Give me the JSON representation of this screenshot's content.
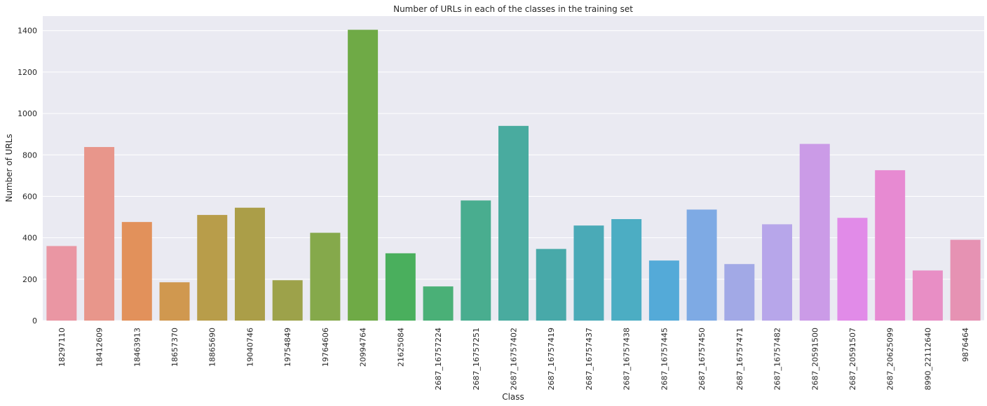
{
  "chart_data": {
    "type": "bar",
    "title": "Number of URLs in each of the classes in the training set",
    "xlabel": "Class",
    "ylabel": "Number of URLs",
    "ylim": [
      0,
      1470
    ],
    "yticks": [
      "0",
      "200",
      "400",
      "600",
      "800",
      "1000",
      "1200",
      "1400"
    ],
    "grid": true,
    "legend": "none",
    "categories": [
      "18297110",
      "18412609",
      "18463913",
      "18657370",
      "18865690",
      "19040746",
      "19754849",
      "19764606",
      "20994764",
      "21625084",
      "2687_16757224",
      "2687_16757251",
      "2687_16757402",
      "2687_16757419",
      "2687_16757437",
      "2687_16757438",
      "2687_16757445",
      "2687_16757450",
      "2687_16757471",
      "2687_16757482",
      "2687_20591500",
      "2687_20591507",
      "2687_20625099",
      "8990_22112640",
      "9876464"
    ],
    "values": [
      360,
      838,
      476,
      185,
      510,
      545,
      195,
      424,
      1404,
      325,
      165,
      580,
      940,
      346,
      459,
      490,
      290,
      536,
      273,
      465,
      853,
      496,
      726,
      242,
      390
    ],
    "colors": [
      "#ea96a3",
      "#e8968b",
      "#e2915b",
      "#d0984f",
      "#b89d4a",
      "#ab9e48",
      "#9da24a",
      "#85a94b",
      "#6faa46",
      "#4aaf5d",
      "#4ab077",
      "#49ad8f",
      "#49ab9f",
      "#48a9a9",
      "#4aaab7",
      "#4cadc3",
      "#54aad8",
      "#7eaae4",
      "#a2a9e6",
      "#b7a6ea",
      "#cb9be7",
      "#e18be8",
      "#e78ad2",
      "#e88ec5",
      "#e692b3"
    ],
    "background": "#eaeaf2"
  }
}
